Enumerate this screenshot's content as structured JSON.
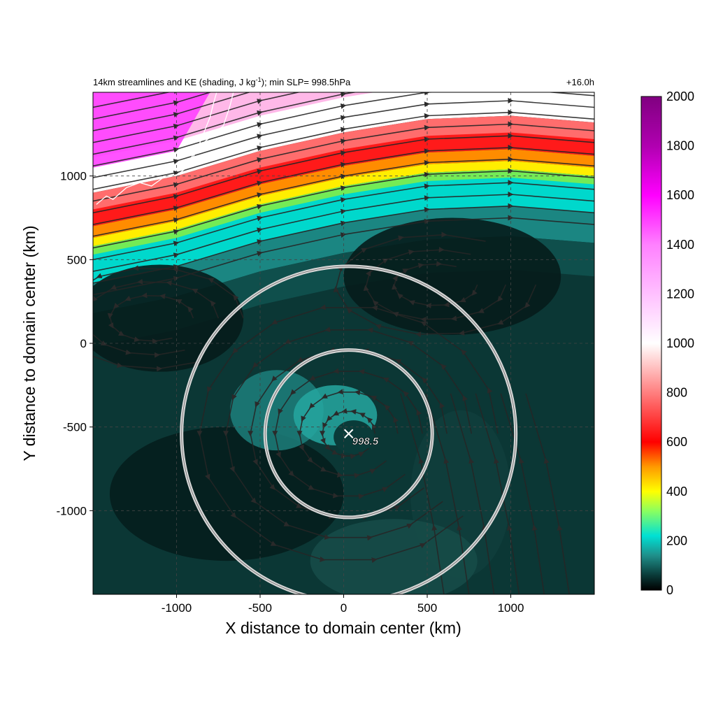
{
  "chart_data": {
    "type": "heatmap",
    "title_left": "14km streamlines and KE (shading, J kg",
    "title_unit_sup": "-1",
    "title_left_tail": "); min SLP= 998.5hPa",
    "title_right": "+16.0h",
    "xlabel": "X distance to domain center (km)",
    "ylabel": "Y distance to domain center (km)",
    "xlim": [
      -1500,
      1500
    ],
    "ylim": [
      -1500,
      1500
    ],
    "x_ticks": [
      -1000,
      -500,
      0,
      500,
      1000
    ],
    "x_tick_labels": [
      "-1000",
      "-500",
      "0",
      "500",
      "1000"
    ],
    "y_ticks": [
      -1000,
      -500,
      0,
      500,
      1000
    ],
    "y_tick_labels": [
      "-1000",
      "-500",
      "0",
      "500",
      "1000"
    ],
    "grid": true,
    "colorbar": {
      "min": 0,
      "max": 2000,
      "ticks": [
        0,
        200,
        400,
        600,
        800,
        1000,
        1200,
        1400,
        1600,
        1800,
        2000
      ],
      "tick_labels": [
        "0",
        "200",
        "400",
        "600",
        "800",
        "1000",
        "1200",
        "1400",
        "1600",
        "1800",
        "2000"
      ],
      "stops": [
        {
          "value": 0,
          "color": "#000000"
        },
        {
          "value": 60,
          "color": "#0a3a38"
        },
        {
          "value": 140,
          "color": "#1f8f8a"
        },
        {
          "value": 220,
          "color": "#00e0d4"
        },
        {
          "value": 320,
          "color": "#8aff60"
        },
        {
          "value": 400,
          "color": "#ffff00"
        },
        {
          "value": 500,
          "color": "#ff9900"
        },
        {
          "value": 600,
          "color": "#ff0000"
        },
        {
          "value": 800,
          "color": "#ff7f7f"
        },
        {
          "value": 1000,
          "color": "#ffffff"
        },
        {
          "value": 1200,
          "color": "#ffc0ff"
        },
        {
          "value": 1400,
          "color": "#ff80ff"
        },
        {
          "value": 1600,
          "color": "#ff00ff"
        },
        {
          "value": 1800,
          "color": "#b000b0"
        },
        {
          "value": 2000,
          "color": "#800080"
        }
      ]
    },
    "storm_center": {
      "x": 30,
      "y": -540,
      "label": "998.5"
    },
    "rings": [
      {
        "center_x": 30,
        "center_y": -540,
        "radius_km": 500
      },
      {
        "center_x": 30,
        "center_y": -540,
        "radius_km": 1000
      }
    ],
    "jet_band": {
      "description_free": true,
      "axis_points": [
        [
          -1500,
          780
        ],
        [
          -1000,
          880
        ],
        [
          -500,
          1030
        ],
        [
          0,
          1140
        ],
        [
          500,
          1220
        ],
        [
          1000,
          1240
        ],
        [
          1500,
          1200
        ]
      ]
    }
  }
}
